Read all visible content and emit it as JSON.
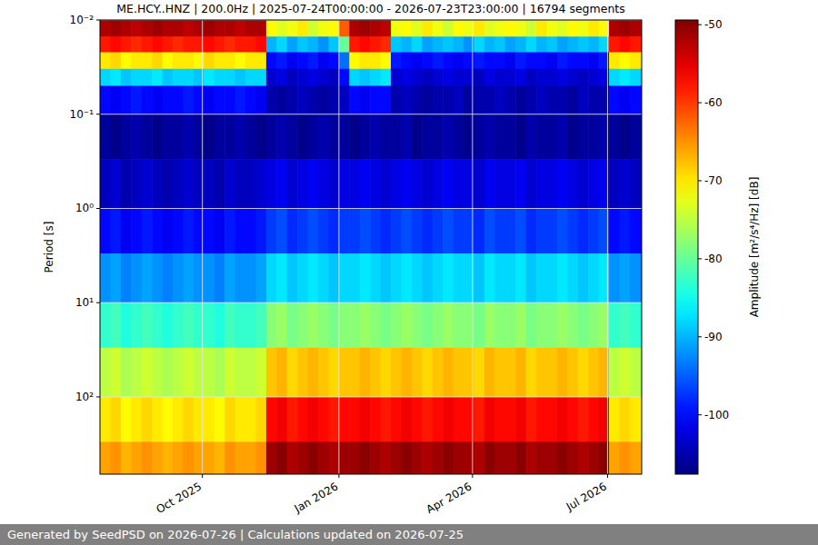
{
  "chart_data": {
    "type": "heatmap",
    "title": "ME.HCY..HNZ | 200.0Hz | 2025-07-24T00:00:00 - 2026-07-23T23:00:00 | 16794 segments",
    "y_label": "Period [s]",
    "footer": "Generated by SeedPSD on 2026-07-26 | Calculations updated on 2026-07-25",
    "log": "y",
    "grid": true,
    "x": [
      "2025-07-24",
      "2025-07-31",
      "2025-08-07",
      "2025-08-14",
      "2025-08-21",
      "2025-08-28",
      "2025-09-04",
      "2025-09-11",
      "2025-09-18",
      "2025-09-25",
      "2025-10-02",
      "2025-10-09",
      "2025-10-16",
      "2025-10-23",
      "2025-10-30",
      "2025-11-06",
      "2025-11-13",
      "2025-11-20",
      "2025-11-27",
      "2025-12-04",
      "2025-12-11",
      "2025-12-18",
      "2025-12-25",
      "2026-01-01",
      "2026-01-08",
      "2026-01-15",
      "2026-01-22",
      "2026-01-29",
      "2026-02-05",
      "2026-02-12",
      "2026-02-19",
      "2026-02-26",
      "2026-03-05",
      "2026-03-12",
      "2026-03-19",
      "2026-03-26",
      "2026-04-02",
      "2026-04-09",
      "2026-04-16",
      "2026-04-23",
      "2026-04-30",
      "2026-05-07",
      "2026-05-14",
      "2026-05-21",
      "2026-05-28",
      "2026-06-04",
      "2026-06-11",
      "2026-06-18",
      "2026-06-25",
      "2026-07-02",
      "2026-07-09",
      "2026-07-16",
      "2026-07-23"
    ],
    "xlim": [
      "2025-07-24",
      "2026-07-24"
    ],
    "xticks": [
      {
        "value": "2025-10-01",
        "label": "Oct 2025"
      },
      {
        "value": "2026-01-01",
        "label": "Jan 2026"
      },
      {
        "value": "2026-04-01",
        "label": "Apr 2026"
      },
      {
        "value": "2026-07-01",
        "label": "Jul 2026"
      }
    ],
    "y_edges": [
      0.01,
      0.015,
      0.022,
      0.033,
      0.05,
      0.1,
      0.3,
      1,
      3,
      10,
      30,
      100,
      300,
      660
    ],
    "ylim": [
      0.01,
      660
    ],
    "yticks": [
      {
        "value": 0.01,
        "label": "10⁻²"
      },
      {
        "value": 0.1,
        "label": "10⁻¹"
      },
      {
        "value": 1,
        "label": "10⁰"
      },
      {
        "value": 10,
        "label": "10¹"
      },
      {
        "value": 100,
        "label": "10²"
      }
    ],
    "cells": [
      [
        -52,
        -51,
        -52,
        -53,
        -52,
        -51,
        -52,
        -52,
        -53,
        -52,
        -51,
        -52,
        -52,
        -53,
        -52,
        -52,
        -71,
        -73,
        -72,
        -70,
        -74,
        -72,
        -71,
        -62,
        -52,
        -51,
        -52,
        -53,
        -72,
        -71,
        -73,
        -70,
        -72,
        -74,
        -71,
        -72,
        -70,
        -73,
        -72,
        -71,
        -72,
        -74,
        -70,
        -72,
        -73,
        -71,
        -72,
        -70,
        -71,
        -52,
        -51,
        -52,
        -52
      ],
      [
        -58,
        -57,
        -58,
        -59,
        -58,
        -57,
        -58,
        -59,
        -58,
        -58,
        -57,
        -58,
        -59,
        -58,
        -58,
        -57,
        -90,
        -88,
        -91,
        -89,
        -90,
        -92,
        -89,
        -80,
        -58,
        -57,
        -58,
        -59,
        -89,
        -90,
        -88,
        -91,
        -90,
        -89,
        -90,
        -92,
        -88,
        -90,
        -89,
        -91,
        -90,
        -88,
        -90,
        -89,
        -91,
        -90,
        -89,
        -90,
        -88,
        -58,
        -57,
        -58,
        -58
      ],
      [
        -70,
        -69,
        -71,
        -70,
        -70,
        -69,
        -71,
        -70,
        -70,
        -71,
        -69,
        -70,
        -70,
        -71,
        -70,
        -70,
        -100,
        -99,
        -101,
        -100,
        -99,
        -101,
        -100,
        -94,
        -71,
        -70,
        -70,
        -71,
        -99,
        -100,
        -101,
        -100,
        -99,
        -100,
        -101,
        -100,
        -99,
        -100,
        -100,
        -101,
        -99,
        -100,
        -100,
        -101,
        -99,
        -100,
        -100,
        -101,
        -99,
        -70,
        -71,
        -70,
        -70
      ],
      [
        -88,
        -87,
        -89,
        -88,
        -88,
        -87,
        -89,
        -88,
        -88,
        -89,
        -87,
        -88,
        -88,
        -89,
        -88,
        -88,
        -103,
        -102,
        -104,
        -103,
        -102,
        -103,
        -104,
        -100,
        -88,
        -89,
        -88,
        -87,
        -103,
        -102,
        -103,
        -104,
        -103,
        -102,
        -103,
        -103,
        -104,
        -102,
        -103,
        -103,
        -102,
        -104,
        -103,
        -103,
        -102,
        -103,
        -104,
        -103,
        -102,
        -88,
        -87,
        -88,
        -89
      ],
      [
        -100,
        -101,
        -100,
        -99,
        -100,
        -101,
        -100,
        -100,
        -99,
        -100,
        -101,
        -100,
        -100,
        -99,
        -100,
        -101,
        -105,
        -106,
        -105,
        -104,
        -105,
        -106,
        -105,
        -104,
        -100,
        -101,
        -100,
        -100,
        -105,
        -104,
        -105,
        -106,
        -105,
        -105,
        -104,
        -106,
        -105,
        -105,
        -104,
        -105,
        -106,
        -105,
        -104,
        -105,
        -105,
        -106,
        -104,
        -105,
        -105,
        -100,
        -101,
        -100,
        -100
      ],
      [
        -106,
        -107,
        -106,
        -105,
        -106,
        -107,
        -106,
        -106,
        -105,
        -106,
        -107,
        -106,
        -106,
        -105,
        -106,
        -107,
        -106,
        -105,
        -106,
        -107,
        -106,
        -105,
        -106,
        -106,
        -107,
        -106,
        -105,
        -106,
        -106,
        -105,
        -107,
        -106,
        -106,
        -105,
        -106,
        -107,
        -106,
        -105,
        -106,
        -106,
        -107,
        -105,
        -106,
        -106,
        -105,
        -107,
        -106,
        -106,
        -105,
        -106,
        -107,
        -106,
        -106
      ],
      [
        -104,
        -103,
        -105,
        -104,
        -103,
        -104,
        -105,
        -104,
        -103,
        -104,
        -104,
        -105,
        -103,
        -104,
        -104,
        -103,
        -102,
        -101,
        -103,
        -102,
        -101,
        -102,
        -103,
        -102,
        -102,
        -101,
        -102,
        -103,
        -102,
        -101,
        -102,
        -103,
        -102,
        -101,
        -102,
        -102,
        -103,
        -101,
        -102,
        -102,
        -101,
        -103,
        -102,
        -102,
        -101,
        -102,
        -103,
        -102,
        -101,
        -104,
        -103,
        -104,
        -105
      ],
      [
        -100,
        -99,
        -101,
        -100,
        -99,
        -100,
        -101,
        -100,
        -99,
        -100,
        -100,
        -101,
        -99,
        -100,
        -100,
        -99,
        -97,
        -96,
        -98,
        -97,
        -96,
        -97,
        -98,
        -97,
        -97,
        -96,
        -97,
        -98,
        -97,
        -96,
        -97,
        -98,
        -97,
        -96,
        -97,
        -97,
        -98,
        -96,
        -97,
        -97,
        -96,
        -98,
        -97,
        -97,
        -96,
        -97,
        -98,
        -97,
        -96,
        -100,
        -99,
        -100,
        -101
      ],
      [
        -92,
        -91,
        -93,
        -92,
        -91,
        -92,
        -93,
        -92,
        -91,
        -92,
        -92,
        -93,
        -91,
        -92,
        -92,
        -91,
        -88,
        -87,
        -89,
        -88,
        -87,
        -88,
        -89,
        -88,
        -88,
        -87,
        -88,
        -89,
        -88,
        -87,
        -88,
        -89,
        -88,
        -87,
        -88,
        -88,
        -89,
        -87,
        -88,
        -88,
        -87,
        -89,
        -88,
        -88,
        -87,
        -88,
        -89,
        -88,
        -87,
        -92,
        -91,
        -92,
        -93
      ],
      [
        -83,
        -82,
        -84,
        -83,
        -82,
        -83,
        -84,
        -83,
        -82,
        -83,
        -83,
        -84,
        -82,
        -83,
        -83,
        -82,
        -78,
        -77,
        -79,
        -78,
        -77,
        -78,
        -79,
        -78,
        -78,
        -77,
        -78,
        -79,
        -78,
        -77,
        -78,
        -79,
        -78,
        -77,
        -78,
        -78,
        -79,
        -77,
        -78,
        -78,
        -77,
        -79,
        -78,
        -78,
        -77,
        -78,
        -79,
        -78,
        -77,
        -83,
        -82,
        -83,
        -84
      ],
      [
        -75,
        -74,
        -76,
        -75,
        -74,
        -75,
        -76,
        -75,
        -74,
        -75,
        -75,
        -76,
        -74,
        -75,
        -75,
        -74,
        -68,
        -67,
        -69,
        -68,
        -67,
        -68,
        -69,
        -68,
        -68,
        -67,
        -68,
        -69,
        -68,
        -67,
        -68,
        -69,
        -68,
        -67,
        -68,
        -68,
        -69,
        -67,
        -68,
        -68,
        -67,
        -69,
        -68,
        -68,
        -67,
        -68,
        -69,
        -68,
        -67,
        -75,
        -74,
        -75,
        -76
      ],
      [
        -70,
        -69,
        -71,
        -70,
        -69,
        -70,
        -71,
        -70,
        -69,
        -70,
        -70,
        -71,
        -69,
        -70,
        -70,
        -69,
        -57,
        -56,
        -58,
        -57,
        -56,
        -57,
        -58,
        -57,
        -57,
        -56,
        -57,
        -58,
        -57,
        -56,
        -57,
        -58,
        -57,
        -56,
        -57,
        -57,
        -58,
        -56,
        -57,
        -57,
        -56,
        -58,
        -57,
        -57,
        -56,
        -57,
        -58,
        -57,
        -56,
        -70,
        -69,
        -70,
        -71
      ],
      [
        -66,
        -65,
        -67,
        -66,
        -65,
        -66,
        -67,
        -66,
        -65,
        -66,
        -66,
        -67,
        -65,
        -66,
        -66,
        -65,
        -51,
        -50,
        -52,
        -51,
        -50,
        -51,
        -52,
        -51,
        -51,
        -50,
        -51,
        -52,
        -51,
        -50,
        -51,
        -52,
        -51,
        -50,
        -51,
        -51,
        -52,
        -50,
        -51,
        -51,
        -50,
        -52,
        -51,
        -51,
        -50,
        -51,
        -52,
        -51,
        -50,
        -66,
        -65,
        -66,
        -67
      ]
    ],
    "colorbar": {
      "label": "Amplitude [m²/s⁴/Hz] [dB]",
      "range": [
        -107.6,
        -49.4
      ],
      "ticks": [
        -100,
        -90,
        -80,
        -70,
        -60,
        -50
      ]
    }
  }
}
